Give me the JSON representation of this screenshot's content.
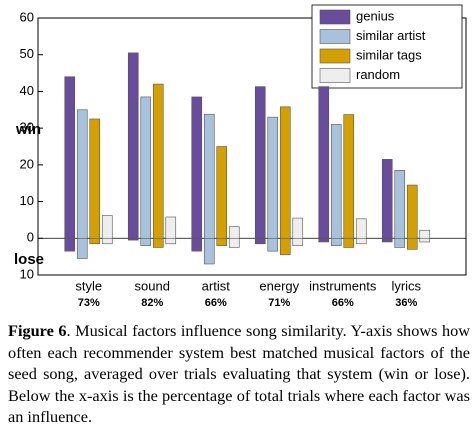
{
  "chart_data": {
    "type": "bar",
    "categories": [
      "style",
      "sound",
      "artist",
      "energy",
      "instruments",
      "lyrics"
    ],
    "category_notes": [
      "73%",
      "82%",
      "66%",
      "71%",
      "66%",
      "36%"
    ],
    "series": [
      {
        "name": "genius",
        "color": "#6a4c9c",
        "values": [
          44,
          50.5,
          38.5,
          41.3,
          41.3,
          21.5
        ],
        "lose": [
          -3.5,
          -0.5,
          -3.5,
          -1.5,
          -1,
          -1
        ]
      },
      {
        "name": "similar artist",
        "color": "#a7c2da",
        "values": [
          35,
          38.5,
          33.8,
          33,
          31,
          18.5
        ],
        "lose": [
          -5.5,
          -2,
          -7,
          -3.5,
          -2,
          -2.5
        ]
      },
      {
        "name": "similar tags",
        "color": "#d4a000",
        "values": [
          32.5,
          42,
          25,
          35.8,
          33.7,
          14.5
        ],
        "lose": [
          -1.5,
          -2.5,
          -2,
          -4.5,
          -2.5,
          -3
        ]
      },
      {
        "name": "random",
        "color": "#eeeeee",
        "values": [
          6.2,
          5.8,
          3.2,
          5.5,
          5.3,
          2.2
        ],
        "lose": [
          -1.5,
          -1.5,
          -2.5,
          -2,
          -1.5,
          -1
        ]
      }
    ],
    "ylim": [
      -10,
      60
    ],
    "yticks": [
      {
        "value": -10,
        "label": "10"
      },
      0,
      10,
      20,
      30,
      40,
      50,
      60
    ],
    "win_label": "win",
    "lose_label": "lose",
    "legend": "upper right",
    "caption_label": "Figure 6",
    "caption": ". Musical factors influence song similarity. Y-axis shows how often each recommender system best matched musical factors of the seed song, averaged over trials evaluating that system (win or lose). Below the x-axis is the percentage of total trials where each factor was an influence."
  }
}
